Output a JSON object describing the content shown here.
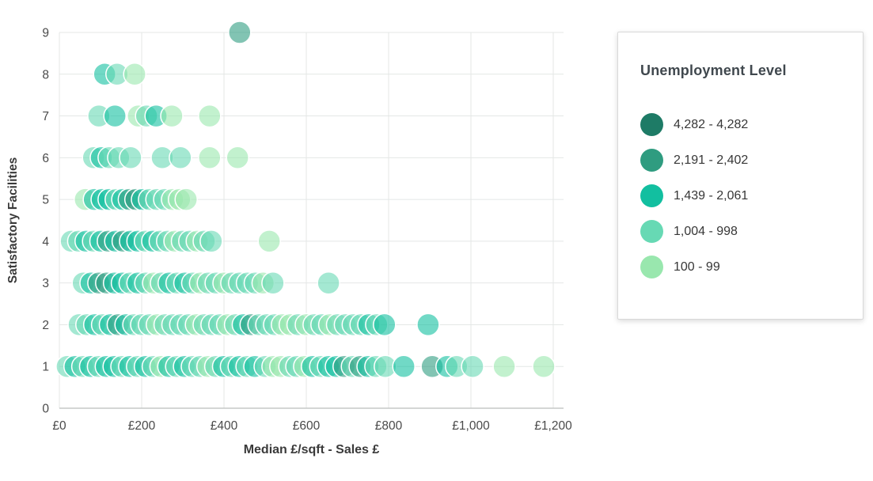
{
  "chart_data": {
    "type": "scatter",
    "title": "",
    "xlabel": "Median £/sqft - Sales £",
    "ylabel": "Satisfactory Facilities",
    "xlim": [
      0,
      1200
    ],
    "ylim": [
      0,
      9
    ],
    "grid": true,
    "legend_position": "right",
    "x_ticks": [
      {
        "value": 0,
        "label": "£0"
      },
      {
        "value": 200,
        "label": "£200"
      },
      {
        "value": 400,
        "label": "£400"
      },
      {
        "value": 600,
        "label": "£600"
      },
      {
        "value": 800,
        "label": "£800"
      },
      {
        "value": 1000,
        "label": "£1,000"
      },
      {
        "value": 1200,
        "label": "£1,200"
      }
    ],
    "y_ticks": [
      0,
      1,
      2,
      3,
      4,
      5,
      6,
      7,
      8,
      9
    ],
    "legend": {
      "title": "Unemployment Level"
    },
    "categories": [
      {
        "label": "4,282 - 4,282",
        "color": "#1e7b66"
      },
      {
        "label": "2,191 - 2,402",
        "color": "#2f9c80"
      },
      {
        "label": "1,439 - 2,061",
        "color": "#12bfa0"
      },
      {
        "label": "1,004 - 998",
        "color": "#67d9b4"
      },
      {
        "label": "100 - 99",
        "color": "#99e7ae"
      }
    ],
    "point_format": "[median_sqft_sales_gbp, satisfactory_facilities, unemployment_category_1_to_5]",
    "points": [
      [
        19,
        1,
        4
      ],
      [
        38,
        1,
        3
      ],
      [
        57,
        1,
        4
      ],
      [
        76,
        1,
        3
      ],
      [
        95,
        1,
        4
      ],
      [
        114,
        1,
        3
      ],
      [
        133,
        1,
        3
      ],
      [
        152,
        1,
        4
      ],
      [
        171,
        1,
        3
      ],
      [
        190,
        1,
        4
      ],
      [
        209,
        1,
        3
      ],
      [
        228,
        1,
        4
      ],
      [
        247,
        1,
        5
      ],
      [
        266,
        1,
        3
      ],
      [
        285,
        1,
        4
      ],
      [
        304,
        1,
        3
      ],
      [
        323,
        1,
        4
      ],
      [
        342,
        1,
        4
      ],
      [
        361,
        1,
        5
      ],
      [
        380,
        1,
        4
      ],
      [
        399,
        1,
        3
      ],
      [
        418,
        1,
        4
      ],
      [
        437,
        1,
        3
      ],
      [
        456,
        1,
        4
      ],
      [
        475,
        1,
        3
      ],
      [
        500,
        1,
        4
      ],
      [
        519,
        1,
        5
      ],
      [
        538,
        1,
        5
      ],
      [
        560,
        1,
        4
      ],
      [
        577,
        1,
        4
      ],
      [
        596,
        1,
        5
      ],
      [
        615,
        1,
        3
      ],
      [
        635,
        1,
        4
      ],
      [
        654,
        1,
        3
      ],
      [
        673,
        1,
        3
      ],
      [
        692,
        1,
        2
      ],
      [
        712,
        1,
        4
      ],
      [
        731,
        1,
        2
      ],
      [
        750,
        1,
        3
      ],
      [
        769,
        1,
        4
      ],
      [
        792,
        1,
        4
      ],
      [
        837,
        1,
        3
      ],
      [
        906,
        1,
        2
      ],
      [
        942,
        1,
        3
      ],
      [
        965,
        1,
        4
      ],
      [
        1004,
        1,
        4
      ],
      [
        1081,
        1,
        5
      ],
      [
        1177,
        1,
        5
      ],
      [
        48,
        2,
        4
      ],
      [
        67,
        2,
        4
      ],
      [
        86,
        2,
        3
      ],
      [
        105,
        2,
        4
      ],
      [
        124,
        2,
        3
      ],
      [
        143,
        2,
        2
      ],
      [
        162,
        2,
        3
      ],
      [
        181,
        2,
        4
      ],
      [
        200,
        2,
        4
      ],
      [
        219,
        2,
        4
      ],
      [
        238,
        2,
        5
      ],
      [
        257,
        2,
        4
      ],
      [
        276,
        2,
        4
      ],
      [
        295,
        2,
        4
      ],
      [
        314,
        2,
        4
      ],
      [
        333,
        2,
        5
      ],
      [
        352,
        2,
        4
      ],
      [
        371,
        2,
        4
      ],
      [
        390,
        2,
        4
      ],
      [
        409,
        2,
        5
      ],
      [
        428,
        2,
        4
      ],
      [
        447,
        2,
        3
      ],
      [
        466,
        2,
        2
      ],
      [
        485,
        2,
        4
      ],
      [
        504,
        2,
        4
      ],
      [
        523,
        2,
        4
      ],
      [
        542,
        2,
        5
      ],
      [
        561,
        2,
        5
      ],
      [
        580,
        2,
        4
      ],
      [
        600,
        2,
        5
      ],
      [
        619,
        2,
        4
      ],
      [
        638,
        2,
        4
      ],
      [
        657,
        2,
        5
      ],
      [
        676,
        2,
        4
      ],
      [
        695,
        2,
        4
      ],
      [
        714,
        2,
        4
      ],
      [
        733,
        2,
        4
      ],
      [
        752,
        2,
        3
      ],
      [
        771,
        2,
        4
      ],
      [
        790,
        2,
        3
      ],
      [
        896,
        2,
        3
      ],
      [
        58,
        3,
        4
      ],
      [
        77,
        3,
        3
      ],
      [
        96,
        3,
        2
      ],
      [
        115,
        3,
        2
      ],
      [
        134,
        3,
        3
      ],
      [
        153,
        3,
        3
      ],
      [
        172,
        3,
        4
      ],
      [
        191,
        3,
        3
      ],
      [
        210,
        3,
        4
      ],
      [
        229,
        3,
        5
      ],
      [
        248,
        3,
        4
      ],
      [
        267,
        3,
        3
      ],
      [
        286,
        3,
        4
      ],
      [
        305,
        3,
        3
      ],
      [
        324,
        3,
        4
      ],
      [
        343,
        3,
        5
      ],
      [
        362,
        3,
        4
      ],
      [
        381,
        3,
        4
      ],
      [
        400,
        3,
        5
      ],
      [
        419,
        3,
        4
      ],
      [
        438,
        3,
        4
      ],
      [
        457,
        3,
        4
      ],
      [
        476,
        3,
        4
      ],
      [
        495,
        3,
        5
      ],
      [
        519,
        3,
        4
      ],
      [
        654,
        3,
        4
      ],
      [
        29,
        4,
        4
      ],
      [
        47,
        4,
        4
      ],
      [
        65,
        4,
        3
      ],
      [
        83,
        4,
        4
      ],
      [
        101,
        4,
        3
      ],
      [
        119,
        4,
        2
      ],
      [
        137,
        4,
        3
      ],
      [
        155,
        4,
        2
      ],
      [
        173,
        4,
        3
      ],
      [
        191,
        4,
        3
      ],
      [
        209,
        4,
        4
      ],
      [
        227,
        4,
        3
      ],
      [
        245,
        4,
        4
      ],
      [
        263,
        4,
        4
      ],
      [
        281,
        4,
        5
      ],
      [
        299,
        4,
        4
      ],
      [
        317,
        4,
        4
      ],
      [
        335,
        4,
        5
      ],
      [
        352,
        4,
        4
      ],
      [
        369,
        4,
        4
      ],
      [
        510,
        4,
        5
      ],
      [
        63,
        5,
        5
      ],
      [
        85,
        5,
        3
      ],
      [
        104,
        5,
        3
      ],
      [
        121,
        5,
        3
      ],
      [
        138,
        5,
        4
      ],
      [
        154,
        5,
        3
      ],
      [
        170,
        5,
        2
      ],
      [
        186,
        5,
        2
      ],
      [
        202,
        5,
        3
      ],
      [
        219,
        5,
        4
      ],
      [
        237,
        5,
        4
      ],
      [
        256,
        5,
        4
      ],
      [
        275,
        5,
        5
      ],
      [
        292,
        5,
        5
      ],
      [
        308,
        5,
        5
      ],
      [
        83,
        6,
        4
      ],
      [
        102,
        6,
        3
      ],
      [
        121,
        6,
        4
      ],
      [
        144,
        6,
        4
      ],
      [
        173,
        6,
        4
      ],
      [
        250,
        6,
        4
      ],
      [
        294,
        6,
        4
      ],
      [
        365,
        6,
        5
      ],
      [
        433,
        6,
        5
      ],
      [
        96,
        7,
        4
      ],
      [
        135,
        7,
        3
      ],
      [
        192,
        7,
        5
      ],
      [
        212,
        7,
        4
      ],
      [
        235,
        7,
        3
      ],
      [
        273,
        7,
        5
      ],
      [
        365,
        7,
        5
      ],
      [
        110,
        8,
        3
      ],
      [
        140,
        8,
        4
      ],
      [
        183,
        8,
        5
      ],
      [
        438,
        9,
        2
      ]
    ]
  },
  "colors": {
    "grid": "#e4e7e6",
    "axis_line": "#c5c8c7",
    "tick_text": "#4a4a4a",
    "axis_title_text": "#3a3a3a"
  }
}
